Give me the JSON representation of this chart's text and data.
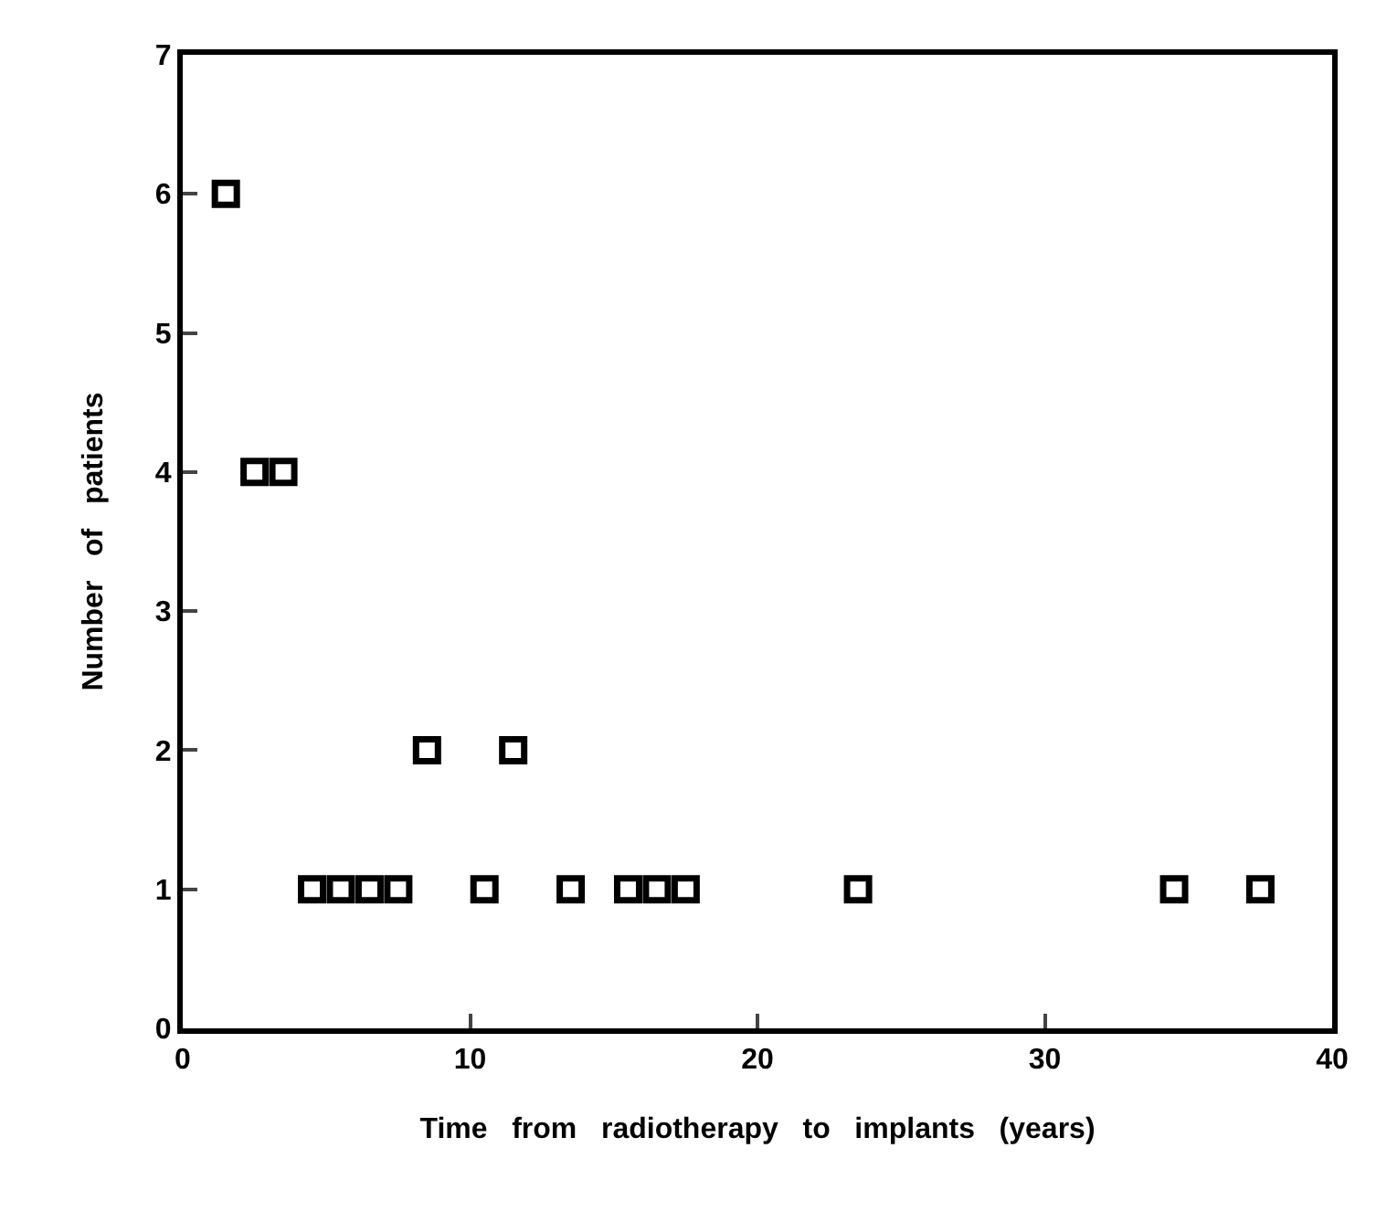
{
  "chart_data": {
    "type": "scatter",
    "xlabel": "Time   from   radiotherapy   to   implants   (years)",
    "ylabel": "Number   of   patients",
    "x": [
      1.5,
      2.5,
      3.5,
      4.5,
      5.5,
      6.5,
      7.5,
      8.5,
      10.5,
      11.5,
      13.5,
      15.5,
      16.5,
      17.5,
      23.5,
      34.5,
      37.5
    ],
    "series": [
      {
        "color": "#000000",
        "values": [
          6,
          4,
          4,
          1,
          1,
          1,
          1,
          2,
          1,
          2,
          1,
          1,
          1,
          1,
          1,
          1,
          1
        ]
      }
    ],
    "xlim": [
      0,
      40
    ],
    "xticks": [
      0,
      10,
      20,
      30,
      40
    ],
    "ylim": [
      0,
      7
    ],
    "yticks": [
      0,
      1,
      2,
      3,
      4,
      5,
      6,
      7
    ],
    "grid": false,
    "marker": "square"
  }
}
